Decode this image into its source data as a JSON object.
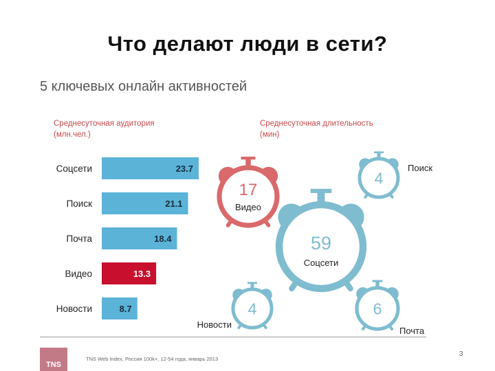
{
  "title": "Что делают люди в сети?",
  "subtitle": "5 ключевых онлайн активностей",
  "left_header": [
    "Среднесуточная аудитория",
    "(млн.чел.)"
  ],
  "right_header": [
    "Среднесуточная длительность",
    "(мин)"
  ],
  "footer": {
    "logo": "TNS",
    "source": "TNS Web Index, Россия 100k+, 12-54 года, январь 2013",
    "page": "3"
  },
  "colors": {
    "bar": "#5bb3d8",
    "highlight": "#c8102e",
    "clock_red": "#d9696b",
    "clock_blue": "#7fbcd0"
  },
  "chart_data": [
    {
      "type": "bar",
      "orientation": "horizontal",
      "title": "Среднесуточная аудитория (млн.чел.)",
      "categories": [
        "Соцсети",
        "Поиск",
        "Почта",
        "Видео",
        "Новости"
      ],
      "values": [
        23.7,
        21.1,
        18.4,
        13.3,
        8.7
      ],
      "value_labels": [
        "23.7",
        "21.1",
        "18.4",
        "13.3",
        "8.7"
      ],
      "highlight": "Видео",
      "xlim": [
        0,
        23.7
      ]
    },
    {
      "type": "bubble",
      "title": "Среднесуточная длительность (мин)",
      "items": [
        {
          "name": "Видео",
          "value": 17,
          "label": "17",
          "color": "red",
          "name_position": "inside"
        },
        {
          "name": "Поиск",
          "value": 4,
          "label": "4",
          "color": "blue",
          "name_position": "right"
        },
        {
          "name": "Соцсети",
          "value": 59,
          "label": "59",
          "color": "blue",
          "name_position": "inside"
        },
        {
          "name": "Новости",
          "value": 4,
          "label": "4",
          "color": "blue",
          "name_position": "left"
        },
        {
          "name": "Почта",
          "value": 6,
          "label": "6",
          "color": "blue",
          "name_position": "below"
        }
      ]
    }
  ]
}
